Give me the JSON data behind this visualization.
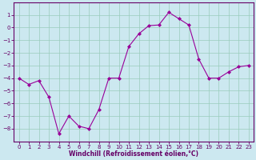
{
  "x": [
    0,
    1,
    2,
    3,
    4,
    5,
    6,
    7,
    8,
    9,
    10,
    11,
    12,
    13,
    14,
    15,
    16,
    17,
    18,
    19,
    20,
    21,
    22,
    23
  ],
  "y": [
    -4.0,
    -4.5,
    -4.2,
    -5.5,
    -8.4,
    -7.0,
    -7.8,
    -8.0,
    -6.5,
    -4.0,
    -4.0,
    -1.5,
    -0.5,
    0.15,
    0.2,
    1.2,
    0.7,
    0.2,
    -2.5,
    -4.0,
    -4.0,
    -3.5,
    -3.1,
    -3.0
  ],
  "line_color": "#990099",
  "marker": "D",
  "marker_size": 2.0,
  "bg_color": "#cce8f0",
  "grid_color": "#99ccbb",
  "xlabel": "Windchill (Refroidissement éolien,°C)",
  "xlabel_color": "#660066",
  "tick_color": "#660066",
  "spine_color": "#660066",
  "ylim": [
    -9,
    2
  ],
  "xlim": [
    -0.5,
    23.5
  ],
  "yticks": [
    1,
    0,
    -1,
    -2,
    -3,
    -4,
    -5,
    -6,
    -7,
    -8
  ],
  "xticks": [
    0,
    1,
    2,
    3,
    4,
    5,
    6,
    7,
    8,
    9,
    10,
    11,
    12,
    13,
    14,
    15,
    16,
    17,
    18,
    19,
    20,
    21,
    22,
    23
  ],
  "tick_labelsize": 5.0,
  "xlabel_fontsize": 5.5,
  "linewidth": 0.8
}
